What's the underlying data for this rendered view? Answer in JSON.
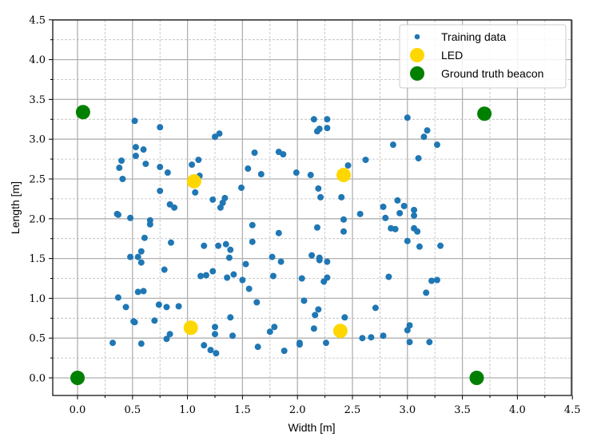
{
  "chart_data": {
    "type": "scatter",
    "title": "",
    "xlabel": "Width [m]",
    "ylabel": "Length [m]",
    "xlim": [
      -0.22,
      4.5
    ],
    "ylim": [
      -0.22,
      4.5
    ],
    "xticks": [
      0.0,
      0.5,
      1.0,
      1.5,
      2.0,
      2.5,
      3.0,
      3.5,
      4.0,
      4.5
    ],
    "yticks": [
      0.0,
      0.5,
      1.0,
      1.5,
      2.0,
      2.5,
      3.0,
      3.5,
      4.0,
      4.5
    ],
    "xtick_labels": [
      "0.0",
      "0.5",
      "1.0",
      "1.5",
      "2.0",
      "2.5",
      "3.0",
      "3.5",
      "4.0",
      "4.5"
    ],
    "ytick_labels": [
      "0.0",
      "0.5",
      "1.0",
      "1.5",
      "2.0",
      "2.5",
      "3.0",
      "3.5",
      "4.0",
      "4.5"
    ],
    "grid": {
      "major": true,
      "minor": true,
      "minor_style": "dashed"
    },
    "legend_position": "upper right",
    "legend": [
      "Training data",
      "LED",
      "Ground truth beacon"
    ],
    "series": [
      {
        "name": "Training data",
        "color": "#1f77b4",
        "marker_size": 4,
        "points": [
          [
            0.52,
            3.23
          ],
          [
            0.75,
            3.15
          ],
          [
            1.25,
            3.03
          ],
          [
            1.29,
            3.07
          ],
          [
            0.53,
            2.9
          ],
          [
            0.6,
            2.87
          ],
          [
            0.53,
            2.79
          ],
          [
            0.4,
            2.73
          ],
          [
            0.38,
            2.64
          ],
          [
            0.62,
            2.69
          ],
          [
            0.75,
            2.65
          ],
          [
            0.82,
            2.58
          ],
          [
            0.41,
            2.5
          ],
          [
            1.04,
            2.68
          ],
          [
            1.1,
            2.74
          ],
          [
            1.11,
            2.54
          ],
          [
            1.07,
            2.33
          ],
          [
            0.75,
            2.35
          ],
          [
            1.23,
            2.24
          ],
          [
            1.32,
            2.2
          ],
          [
            1.34,
            2.26
          ],
          [
            1.3,
            2.14
          ],
          [
            0.36,
            2.06
          ],
          [
            0.37,
            2.05
          ],
          [
            0.48,
            2.01
          ],
          [
            0.66,
            1.98
          ],
          [
            0.66,
            1.93
          ],
          [
            0.84,
            2.18
          ],
          [
            0.88,
            2.14
          ],
          [
            0.61,
            1.76
          ],
          [
            0.85,
            1.7
          ],
          [
            0.48,
            1.52
          ],
          [
            0.55,
            1.52
          ],
          [
            0.58,
            1.59
          ],
          [
            0.58,
            1.45
          ],
          [
            0.79,
            1.36
          ],
          [
            1.15,
            1.66
          ],
          [
            1.28,
            1.66
          ],
          [
            1.35,
            1.68
          ],
          [
            1.39,
            1.61
          ],
          [
            1.38,
            1.51
          ],
          [
            1.53,
            1.43
          ],
          [
            1.42,
            1.3
          ],
          [
            1.12,
            1.28
          ],
          [
            1.17,
            1.29
          ],
          [
            1.23,
            1.34
          ],
          [
            1.36,
            1.26
          ],
          [
            1.5,
            1.23
          ],
          [
            0.55,
            1.08
          ],
          [
            0.6,
            1.09
          ],
          [
            0.37,
            1.01
          ],
          [
            0.44,
            0.89
          ],
          [
            0.74,
            0.92
          ],
          [
            0.81,
            0.89
          ],
          [
            0.92,
            0.9
          ],
          [
            0.7,
            0.72
          ],
          [
            0.51,
            0.71
          ],
          [
            0.52,
            0.7
          ],
          [
            0.32,
            0.44
          ],
          [
            0.58,
            0.43
          ],
          [
            0.81,
            0.49
          ],
          [
            0.84,
            0.55
          ],
          [
            1.25,
            0.64
          ],
          [
            1.25,
            0.55
          ],
          [
            1.15,
            0.41
          ],
          [
            1.21,
            0.35
          ],
          [
            1.26,
            0.31
          ],
          [
            1.41,
            0.53
          ],
          [
            1.39,
            0.76
          ],
          [
            1.56,
            1.12
          ],
          [
            1.63,
            0.95
          ],
          [
            1.64,
            0.39
          ],
          [
            1.75,
            0.58
          ],
          [
            1.79,
            0.64
          ],
          [
            1.88,
            0.34
          ],
          [
            2.02,
            0.42
          ],
          [
            2.02,
            0.44
          ],
          [
            1.55,
            2.63
          ],
          [
            1.49,
            2.39
          ],
          [
            1.61,
            2.83
          ],
          [
            1.67,
            2.56
          ],
          [
            1.83,
            2.84
          ],
          [
            1.87,
            2.81
          ],
          [
            1.99,
            2.58
          ],
          [
            2.12,
            2.55
          ],
          [
            2.15,
            3.25
          ],
          [
            2.18,
            3.1
          ],
          [
            2.2,
            3.13
          ],
          [
            2.27,
            3.25
          ],
          [
            2.27,
            3.14
          ],
          [
            2.19,
            2.38
          ],
          [
            2.46,
            2.67
          ],
          [
            2.62,
            2.74
          ],
          [
            2.21,
            2.27
          ],
          [
            2.4,
            2.27
          ],
          [
            2.42,
            1.99
          ],
          [
            2.42,
            1.84
          ],
          [
            1.59,
            1.92
          ],
          [
            1.59,
            1.71
          ],
          [
            1.83,
            1.82
          ],
          [
            1.77,
            1.52
          ],
          [
            1.85,
            1.46
          ],
          [
            1.78,
            1.28
          ],
          [
            2.04,
            1.25
          ],
          [
            2.13,
            1.54
          ],
          [
            2.18,
            1.89
          ],
          [
            2.2,
            1.51
          ],
          [
            2.2,
            1.48
          ],
          [
            2.27,
            1.46
          ],
          [
            2.27,
            1.26
          ],
          [
            2.24,
            1.21
          ],
          [
            2.06,
            0.97
          ],
          [
            2.19,
            0.86
          ],
          [
            2.16,
            0.79
          ],
          [
            2.15,
            0.62
          ],
          [
            2.26,
            0.44
          ],
          [
            2.43,
            0.76
          ],
          [
            2.59,
            0.5
          ],
          [
            2.67,
            0.51
          ],
          [
            2.71,
            0.88
          ],
          [
            2.78,
            0.53
          ],
          [
            2.57,
            2.06
          ],
          [
            2.78,
            2.15
          ],
          [
            2.8,
            2.01
          ],
          [
            2.85,
            1.88
          ],
          [
            2.89,
            1.87
          ],
          [
            2.87,
            2.93
          ],
          [
            2.91,
            2.23
          ],
          [
            2.93,
            2.07
          ],
          [
            2.97,
            2.16
          ],
          [
            3.0,
            3.27
          ],
          [
            3.06,
            2.11
          ],
          [
            3.06,
            2.04
          ],
          [
            3.06,
            1.88
          ],
          [
            3.09,
            1.84
          ],
          [
            3.11,
            1.65
          ],
          [
            3.0,
            1.72
          ],
          [
            2.83,
            1.27
          ],
          [
            3.0,
            0.6
          ],
          [
            3.02,
            0.66
          ],
          [
            3.02,
            0.45
          ],
          [
            3.1,
            2.76
          ],
          [
            3.15,
            3.03
          ],
          [
            3.18,
            3.11
          ],
          [
            3.27,
            2.93
          ],
          [
            3.17,
            1.07
          ],
          [
            3.22,
            1.22
          ],
          [
            3.27,
            1.23
          ],
          [
            3.3,
            1.66
          ],
          [
            3.2,
            0.45
          ]
        ]
      },
      {
        "name": "LED",
        "color": "#ffd700",
        "marker_size": 9,
        "points": [
          [
            1.06,
            2.47
          ],
          [
            2.42,
            2.55
          ],
          [
            1.03,
            0.63
          ],
          [
            2.39,
            0.59
          ]
        ]
      },
      {
        "name": "Ground truth beacon",
        "color": "#008000",
        "marker_size": 9,
        "points": [
          [
            0.05,
            3.34
          ],
          [
            3.7,
            3.32
          ],
          [
            0.0,
            0.0
          ],
          [
            3.63,
            0.0
          ]
        ]
      }
    ]
  },
  "legend": {
    "items": [
      {
        "label": "Training data",
        "color": "#1f77b4"
      },
      {
        "label": "LED",
        "color": "#ffd700"
      },
      {
        "label": "Ground truth beacon",
        "color": "#008000"
      }
    ]
  },
  "axes": {
    "xlabel": "Width [m]",
    "ylabel": "Length [m]"
  }
}
